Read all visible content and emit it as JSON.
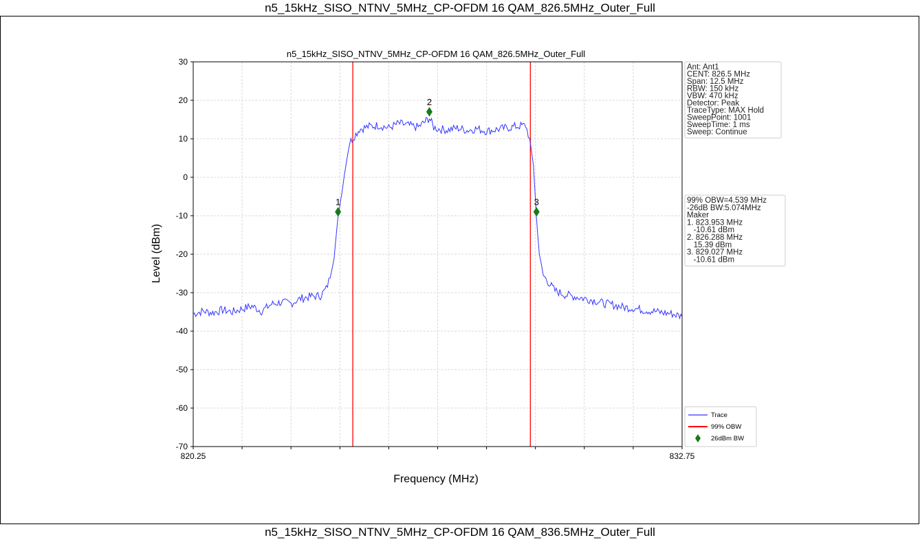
{
  "page": {
    "caption_top": "n5_15kHz_SISO_NTNV_5MHz_CP-OFDM 16 QAM_826.5MHz_Outer_Full",
    "caption_bottom": "n5_15kHz_SISO_NTNV_5MHz_CP-OFDM 16 QAM_836.5MHz_Outer_Full"
  },
  "chart_data": {
    "type": "line",
    "title": "n5_15kHz_SISO_NTNV_5MHz_CP-OFDM 16 QAM_826.5MHz_Outer_Full",
    "xlabel": "Frequency (MHz)",
    "ylabel": "Level (dBm)",
    "xlim": [
      820.25,
      832.75
    ],
    "ylim": [
      -70,
      30
    ],
    "x_tick_labels": [
      "820.25",
      "832.75"
    ],
    "x_gridlines": [
      821.5,
      822.75,
      824.0,
      825.25,
      826.5,
      827.75,
      829.0,
      830.25,
      831.5
    ],
    "y_ticks": [
      30,
      20,
      10,
      0,
      -10,
      -20,
      -30,
      -40,
      -50,
      -60,
      -70
    ],
    "grid": true,
    "series": [
      {
        "name": "Trace",
        "color": "#3333ff",
        "x": [
          820.25,
          820.5,
          820.75,
          821.0,
          821.25,
          821.5,
          821.75,
          822.0,
          822.25,
          822.5,
          822.75,
          823.0,
          823.25,
          823.5,
          823.65,
          823.75,
          823.85,
          823.95,
          824.05,
          824.15,
          824.25,
          824.5,
          824.75,
          825.0,
          825.25,
          825.5,
          825.75,
          826.0,
          826.15,
          826.288,
          826.4,
          826.5,
          826.75,
          827.0,
          827.25,
          827.5,
          827.75,
          828.0,
          828.25,
          828.5,
          828.75,
          828.85,
          828.95,
          829.027,
          829.1,
          829.2,
          829.35,
          829.5,
          829.75,
          830.0,
          830.25,
          830.5,
          830.75,
          831.0,
          831.25,
          831.5,
          831.75,
          832.0,
          832.25,
          832.5,
          832.75
        ],
        "y": [
          -35.5,
          -34.8,
          -35.2,
          -34.5,
          -35.0,
          -34.2,
          -33.5,
          -34.8,
          -33.0,
          -32.5,
          -32.8,
          -31.5,
          -31.0,
          -30.8,
          -29.0,
          -26.0,
          -21.0,
          -10.61,
          -4.0,
          3.0,
          9.0,
          12.5,
          13.2,
          13.5,
          12.8,
          14.0,
          13.5,
          13.0,
          14.2,
          15.39,
          13.0,
          12.6,
          12.3,
          12.8,
          12.2,
          12.6,
          12.0,
          12.4,
          12.8,
          13.2,
          13.5,
          10.0,
          3.0,
          -10.61,
          -20.0,
          -25.5,
          -27.5,
          -29.5,
          -30.5,
          -31.0,
          -31.5,
          -32.0,
          -32.8,
          -33.2,
          -33.8,
          -34.0,
          -34.5,
          -34.8,
          -35.2,
          -35.5,
          -36.2
        ]
      }
    ],
    "obw_lines": {
      "name": "99% OBW",
      "color": "#ff0000",
      "x": [
        824.33,
        828.87
      ]
    },
    "markers": {
      "name": "26dBm BW",
      "color": "#1a7a1a",
      "points": [
        {
          "label": "1",
          "x": 823.953,
          "y": -9.0
        },
        {
          "label": "2",
          "x": 826.288,
          "y": 17.0
        },
        {
          "label": "3",
          "x": 829.027,
          "y": -9.0
        }
      ]
    },
    "info_box": [
      "Ant: Ant1",
      "CENT: 826.5 MHz",
      "Span: 12.5 MHz",
      "RBW: 150 kHz",
      "VBW: 470 kHz",
      "Detector: Peak",
      "TraceType: MAX Hold",
      "SweepPoint: 1001",
      "SweepTime: 1 ms",
      "Sweep: Continue"
    ],
    "result_box": [
      "99% OBW=4.539 MHz",
      "-26dB BW:5.074MHz",
      "Maker",
      "1. 823.953 MHz",
      "   -10.61 dBm",
      "2. 826.288 MHz",
      "   15.39 dBm",
      "3. 829.027 MHz",
      "   -10.61 dBm"
    ],
    "legend": {
      "placement": "bottom-right",
      "entries": [
        {
          "label": "Trace",
          "color": "#3333ff",
          "kind": "line"
        },
        {
          "label": "99% OBW",
          "color": "#ff0000",
          "kind": "line"
        },
        {
          "label": "26dBm BW",
          "color": "#1a7a1a",
          "kind": "diamond"
        }
      ]
    }
  }
}
